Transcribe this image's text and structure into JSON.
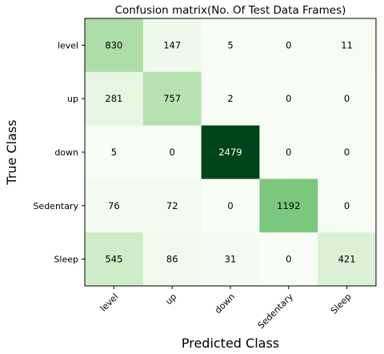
{
  "chart_data": {
    "type": "heatmap",
    "title": "Confusion matrix(No. Of Test Data Frames)",
    "xlabel": "Predicted Class",
    "ylabel": "True Class",
    "x_categories": [
      "level",
      "up",
      "down",
      "Sedentary",
      "Sleep"
    ],
    "y_categories": [
      "level",
      "up",
      "down",
      "Sedentary",
      "Sleep"
    ],
    "values": [
      [
        830,
        147,
        5,
        0,
        11
      ],
      [
        281,
        757,
        2,
        0,
        0
      ],
      [
        5,
        0,
        2479,
        0,
        0
      ],
      [
        76,
        72,
        0,
        1192,
        0
      ],
      [
        545,
        86,
        31,
        0,
        421
      ]
    ],
    "colormap": "Greens",
    "value_range": [
      0,
      2479
    ],
    "colors": {
      "low": "#f7fcf5",
      "high": "#00441b"
    }
  }
}
